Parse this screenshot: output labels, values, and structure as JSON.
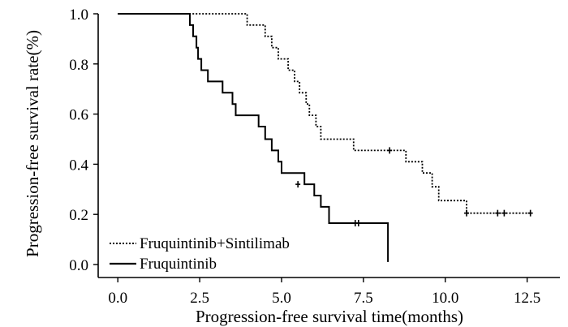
{
  "chart_data": {
    "type": "line",
    "subtype": "kaplan-meier step",
    "title": "",
    "xlabel": "Progression-free survival time(months)",
    "ylabel": "Progression-free survival rate(%)",
    "xlim": [
      -0.6,
      13.5
    ],
    "ylim": [
      0.0,
      1.0
    ],
    "xticks": [
      0.0,
      2.5,
      5.0,
      7.5,
      10.0,
      12.5
    ],
    "xtick_labels": [
      "0.0",
      "2.5",
      "5.0",
      "7.5",
      "10.0",
      "12.5"
    ],
    "yticks": [
      0.0,
      0.2,
      0.4,
      0.6,
      0.8,
      1.0
    ],
    "ytick_labels": [
      "0.0",
      "0.2",
      "0.4",
      "0.6",
      "0.8",
      "1.0"
    ],
    "grid": false,
    "legend_position": "bottom-left",
    "series": [
      {
        "name": "Fruquintinib+Sintilimab",
        "style": "dotted",
        "color": "#000000",
        "steps": [
          [
            0,
            1.0
          ],
          [
            3.95,
            0.955
          ],
          [
            4.5,
            0.91
          ],
          [
            4.7,
            0.865
          ],
          [
            4.9,
            0.82
          ],
          [
            5.2,
            0.775
          ],
          [
            5.4,
            0.73
          ],
          [
            5.55,
            0.685
          ],
          [
            5.75,
            0.64
          ],
          [
            5.85,
            0.595
          ],
          [
            6.05,
            0.55
          ],
          [
            6.2,
            0.5
          ],
          [
            7.2,
            0.455
          ],
          [
            8.8,
            0.41
          ],
          [
            9.3,
            0.365
          ],
          [
            9.6,
            0.31
          ],
          [
            9.8,
            0.255
          ],
          [
            10.65,
            0.205
          ],
          [
            12.6,
            0.205
          ]
        ],
        "censored": [
          [
            8.3,
            0.455
          ],
          [
            10.65,
            0.205
          ],
          [
            11.6,
            0.205
          ],
          [
            11.8,
            0.205
          ],
          [
            12.6,
            0.205
          ]
        ]
      },
      {
        "name": "Fruquintinib",
        "style": "solid",
        "color": "#000000",
        "steps": [
          [
            0,
            1.0
          ],
          [
            2.2,
            0.955
          ],
          [
            2.3,
            0.91
          ],
          [
            2.4,
            0.865
          ],
          [
            2.45,
            0.82
          ],
          [
            2.55,
            0.775
          ],
          [
            2.75,
            0.73
          ],
          [
            3.2,
            0.685
          ],
          [
            3.5,
            0.64
          ],
          [
            3.6,
            0.595
          ],
          [
            4.3,
            0.55
          ],
          [
            4.5,
            0.5
          ],
          [
            4.7,
            0.455
          ],
          [
            4.9,
            0.41
          ],
          [
            5.0,
            0.365
          ],
          [
            5.7,
            0.32
          ],
          [
            6.0,
            0.275
          ],
          [
            6.2,
            0.23
          ],
          [
            6.45,
            0.165
          ],
          [
            8.25,
            0.165
          ],
          [
            8.25,
            0.01
          ]
        ],
        "censored": [
          [
            5.5,
            0.32
          ],
          [
            7.25,
            0.165
          ],
          [
            7.35,
            0.165
          ]
        ]
      }
    ]
  }
}
